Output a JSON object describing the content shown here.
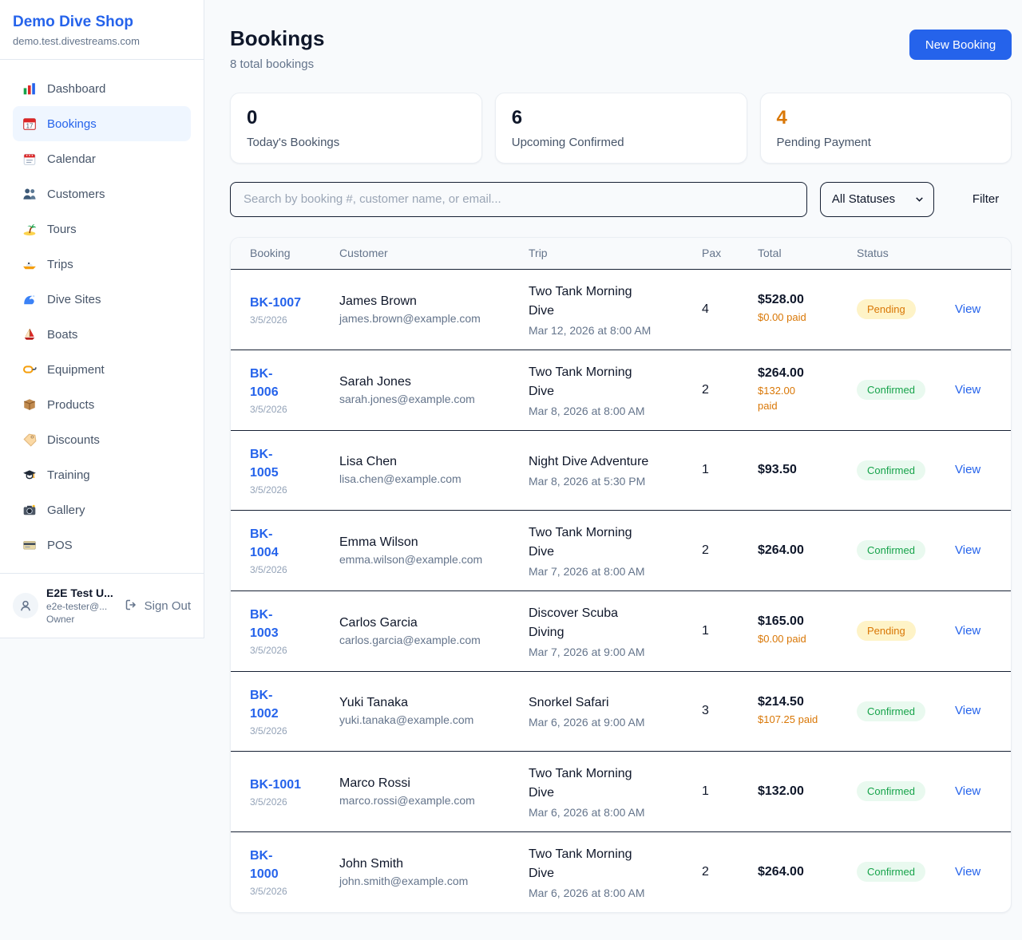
{
  "sidebar": {
    "brand": {
      "name": "Demo Dive Shop",
      "domain": "demo.test.divestreams.com"
    },
    "items": [
      {
        "label": "Dashboard",
        "icon": "bar-chart",
        "active": false
      },
      {
        "label": "Bookings",
        "icon": "calendar-date",
        "active": true
      },
      {
        "label": "Calendar",
        "icon": "spiral-calendar",
        "active": false
      },
      {
        "label": "Customers",
        "icon": "people",
        "active": false
      },
      {
        "label": "Tours",
        "icon": "island",
        "active": false
      },
      {
        "label": "Trips",
        "icon": "speedboat",
        "active": false
      },
      {
        "label": "Dive Sites",
        "icon": "wave",
        "active": false
      },
      {
        "label": "Boats",
        "icon": "sailboat",
        "active": false
      },
      {
        "label": "Equipment",
        "icon": "diving-mask",
        "active": false
      },
      {
        "label": "Products",
        "icon": "package",
        "active": false
      },
      {
        "label": "Discounts",
        "icon": "tag",
        "active": false
      },
      {
        "label": "Training",
        "icon": "grad-cap",
        "active": false
      },
      {
        "label": "Gallery",
        "icon": "camera",
        "active": false
      },
      {
        "label": "POS",
        "icon": "credit-card",
        "active": false
      }
    ],
    "user": {
      "name": "E2E Test U...",
      "email": "e2e-tester@...",
      "role": "Owner",
      "sign_out_label": "Sign Out"
    }
  },
  "header": {
    "title": "Bookings",
    "subtitle": "8 total bookings",
    "new_booking_label": "New Booking"
  },
  "stats": [
    {
      "value": "0",
      "label": "Today's Bookings",
      "value_color": "#0f172a"
    },
    {
      "value": "6",
      "label": "Upcoming Confirmed",
      "value_color": "#0f172a"
    },
    {
      "value": "4",
      "label": "Pending Payment",
      "value_color": "#d97706"
    }
  ],
  "filters": {
    "search_placeholder": "Search by booking #, customer name, or email...",
    "status_selected": "All Statuses",
    "filter_label": "Filter"
  },
  "table": {
    "columns": [
      "Booking",
      "Customer",
      "Trip",
      "Pax",
      "Total",
      "Status"
    ],
    "view_label": "View",
    "rows": [
      {
        "booking_id": "BK-1007",
        "booking_date": "3/5/2026",
        "customer_name": "James Brown",
        "customer_email": "james.brown@example.com",
        "trip_name": "Two Tank Morning\nDive",
        "trip_datetime": "Mar 12, 2026 at 8:00 AM",
        "pax": "4",
        "total": "$528.00",
        "paid": "$0.00 paid",
        "status": "Pending"
      },
      {
        "booking_id": "BK-\n1006",
        "booking_date": "3/5/2026",
        "customer_name": "Sarah Jones",
        "customer_email": "sarah.jones@example.com",
        "trip_name": "Two Tank Morning\nDive",
        "trip_datetime": "Mar 8, 2026 at 8:00 AM",
        "pax": "2",
        "total": "$264.00",
        "paid": "$132.00\npaid",
        "status": "Confirmed"
      },
      {
        "booking_id": "BK-\n1005",
        "booking_date": "3/5/2026",
        "customer_name": "Lisa Chen",
        "customer_email": "lisa.chen@example.com",
        "trip_name": "Night Dive Adventure",
        "trip_datetime": "Mar 8, 2026 at 5:30 PM",
        "pax": "1",
        "total": "$93.50",
        "paid": null,
        "status": "Confirmed"
      },
      {
        "booking_id": "BK-\n1004",
        "booking_date": "3/5/2026",
        "customer_name": "Emma Wilson",
        "customer_email": "emma.wilson@example.com",
        "trip_name": "Two Tank Morning\nDive",
        "trip_datetime": "Mar 7, 2026 at 8:00 AM",
        "pax": "2",
        "total": "$264.00",
        "paid": null,
        "status": "Confirmed"
      },
      {
        "booking_id": "BK-\n1003",
        "booking_date": "3/5/2026",
        "customer_name": "Carlos Garcia",
        "customer_email": "carlos.garcia@example.com",
        "trip_name": "Discover Scuba\nDiving",
        "trip_datetime": "Mar 7, 2026 at 9:00 AM",
        "pax": "1",
        "total": "$165.00",
        "paid": "$0.00 paid",
        "status": "Pending"
      },
      {
        "booking_id": "BK-\n1002",
        "booking_date": "3/5/2026",
        "customer_name": "Yuki Tanaka",
        "customer_email": "yuki.tanaka@example.com",
        "trip_name": "Snorkel Safari",
        "trip_datetime": "Mar 6, 2026 at 9:00 AM",
        "pax": "3",
        "total": "$214.50",
        "paid": "$107.25 paid",
        "status": "Confirmed"
      },
      {
        "booking_id": "BK-1001",
        "booking_date": "3/5/2026",
        "customer_name": "Marco Rossi",
        "customer_email": "marco.rossi@example.com",
        "trip_name": "Two Tank Morning\nDive",
        "trip_datetime": "Mar 6, 2026 at 8:00 AM",
        "pax": "1",
        "total": "$132.00",
        "paid": null,
        "status": "Confirmed"
      },
      {
        "booking_id": "BK-\n1000",
        "booking_date": "3/5/2026",
        "customer_name": "John Smith",
        "customer_email": "john.smith@example.com",
        "trip_name": "Two Tank Morning\nDive",
        "trip_datetime": "Mar 6, 2026 at 8:00 AM",
        "pax": "2",
        "total": "$264.00",
        "paid": null,
        "status": "Confirmed"
      }
    ]
  },
  "colors": {
    "accent": "#2563eb",
    "pending_text": "#d97706",
    "pending_bg": "#fef3c7",
    "confirmed_text": "#16a34a",
    "confirmed_bg": "#e9f9ef",
    "page_bg": "#f8fafc"
  }
}
